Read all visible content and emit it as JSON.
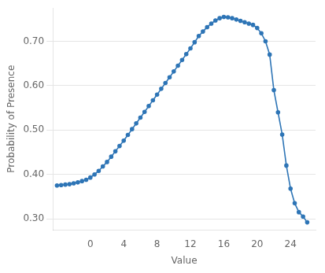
{
  "chart_data": {
    "type": "line",
    "xlabel": "Value",
    "ylabel": "Probability of Presence",
    "color": "#2E75B6",
    "marker": "o",
    "grid": "y",
    "xlim": [
      -4.5,
      27.0
    ],
    "ylim": [
      0.275,
      0.775
    ],
    "xticks": [
      0,
      4,
      8,
      12,
      16,
      20,
      24
    ],
    "yticks": [
      {
        "value": 0.3,
        "label": "0.30"
      },
      {
        "value": 0.4,
        "label": "0.40"
      },
      {
        "value": 0.5,
        "label": "0.50"
      },
      {
        "value": 0.6,
        "label": "0.60"
      },
      {
        "value": 0.7,
        "label": "0.70"
      }
    ],
    "x": [
      -4,
      -3.5,
      -3,
      -2.5,
      -2,
      -1.5,
      -1,
      -0.5,
      0,
      0.5,
      1,
      1.5,
      2,
      2.5,
      3,
      3.5,
      4,
      4.5,
      5,
      5.5,
      6,
      6.5,
      7,
      7.5,
      8,
      8.5,
      9,
      9.5,
      10,
      10.5,
      11,
      11.5,
      12,
      12.5,
      13,
      13.5,
      14,
      14.5,
      15,
      15.5,
      16,
      16.5,
      17,
      17.5,
      18,
      18.5,
      19,
      19.5,
      20,
      20.5,
      21,
      21.5,
      22,
      22.5,
      23,
      23.5,
      24,
      24.5,
      25,
      25.5,
      26
    ],
    "values": [
      0.375,
      0.376,
      0.377,
      0.378,
      0.38,
      0.382,
      0.385,
      0.388,
      0.393,
      0.4,
      0.408,
      0.418,
      0.428,
      0.44,
      0.452,
      0.464,
      0.476,
      0.489,
      0.502,
      0.515,
      0.528,
      0.541,
      0.554,
      0.567,
      0.58,
      0.593,
      0.606,
      0.619,
      0.632,
      0.645,
      0.658,
      0.671,
      0.684,
      0.698,
      0.712,
      0.722,
      0.732,
      0.74,
      0.747,
      0.752,
      0.755,
      0.754,
      0.752,
      0.749,
      0.746,
      0.743,
      0.74,
      0.737,
      0.73,
      0.718,
      0.7,
      0.67,
      0.59,
      0.54,
      0.49,
      0.42,
      0.368,
      0.335,
      0.315,
      0.305,
      0.292
    ]
  }
}
